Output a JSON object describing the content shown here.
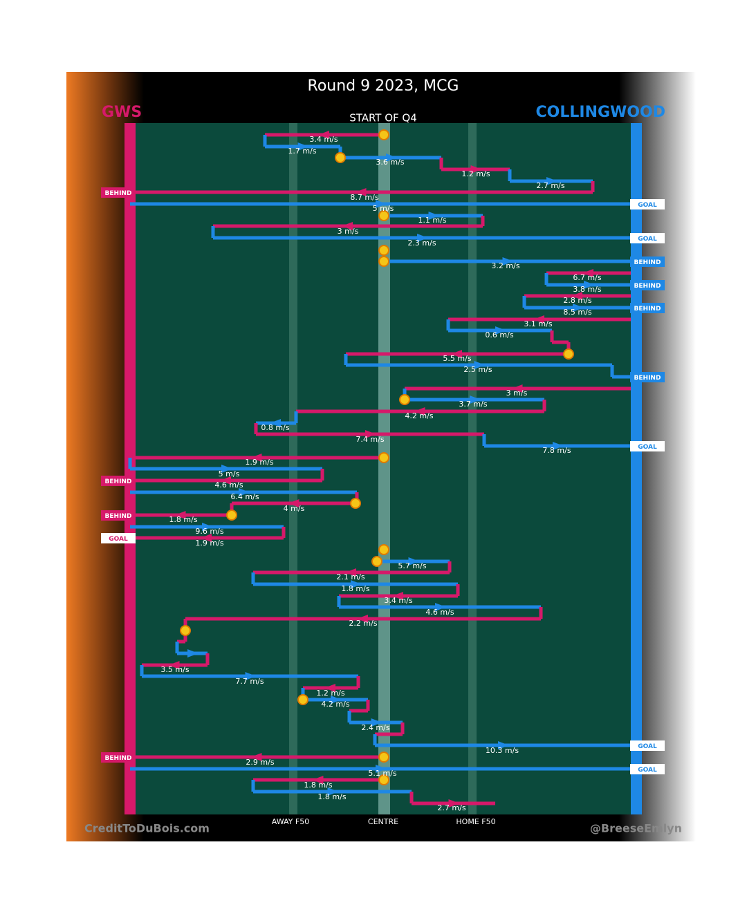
{
  "title": "Round 9 2023, MCG",
  "teams": {
    "gws": "GWS",
    "collingwood": "COLLINGWOOD"
  },
  "period": "START OF Q4",
  "zones": [
    "AWAY F50",
    "CENTRE",
    "HOME F50"
  ],
  "credits": [
    "CreditToDuBois.com",
    "@BreeseEmlyn"
  ],
  "speeds": [
    "3.4 m/s",
    "1.7 m/s",
    "3.6 m/s",
    "1.2 m/s",
    "2.7 m/s",
    "8.7 m/s",
    "5 m/s",
    "1.1 m/s",
    "3 m/s",
    "2.3 m/s",
    "3.2 m/s",
    "6.7 m/s",
    "3.8 m/s",
    "2.8 m/s",
    "8.5 m/s",
    "3.1 m/s",
    "0.6 m/s",
    "5.5 m/s",
    "2.5 m/s",
    "3 m/s",
    "3.7 m/s",
    "4.2 m/s",
    "0.8 m/s",
    "7.4 m/s",
    "7.8 m/s",
    "1.9 m/s",
    "5 m/s",
    "4.6 m/s",
    "6.4 m/s",
    "4 m/s",
    "1.8 m/s",
    "9.6 m/s",
    "1.9 m/s",
    "5.7 m/s",
    "2.1 m/s",
    "1.8 m/s",
    "3.4 m/s",
    "4.6 m/s",
    "2.2 m/s",
    "3.5 m/s",
    "7.7 m/s",
    "1.2 m/s",
    "4.2 m/s",
    "2.4 m/s",
    "10.3 m/s",
    "2.9 m/s",
    "5.1 m/s",
    "1.8 m/s",
    "1.8 m/s",
    "2.7 m/s"
  ],
  "outcomes_gws": [
    "BEHIND",
    "BEHIND",
    "BEHIND",
    "GOAL",
    "BEHIND"
  ],
  "outcomes_collingwood": [
    "GOAL",
    "GOAL",
    "BEHIND",
    "BEHIND",
    "BEHIND",
    "BEHIND",
    "GOAL",
    "GOAL",
    "GOAL"
  ]
}
